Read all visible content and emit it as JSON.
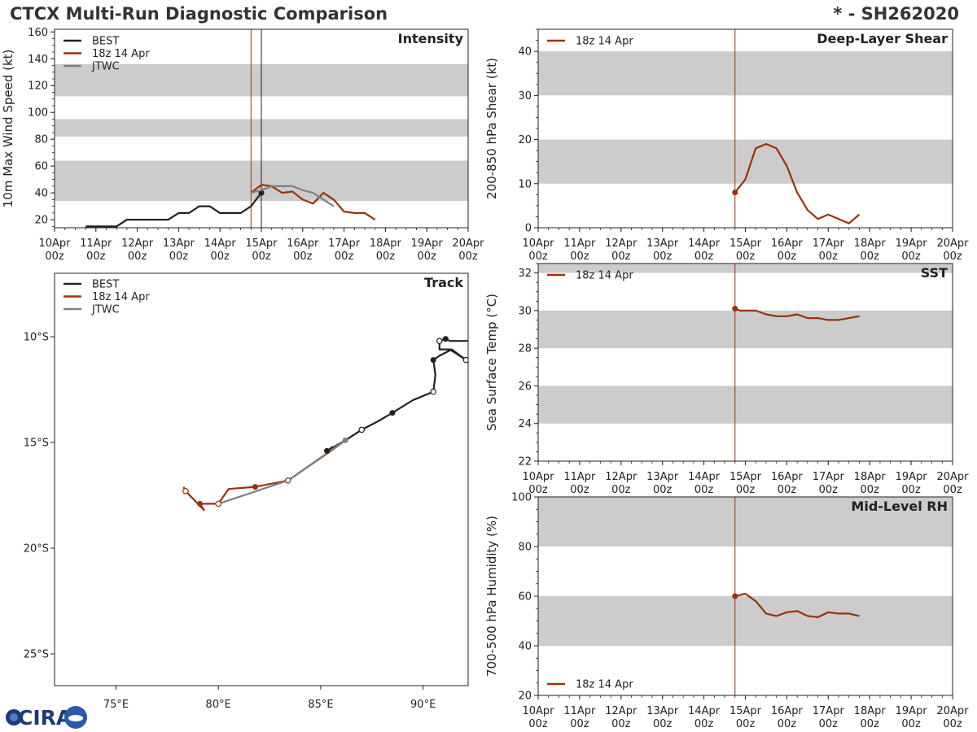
{
  "header": {
    "title": "CTCX Multi-Run Diagnostic Comparison",
    "storm_id": "* - SH262020"
  },
  "logo": {
    "text": "CIRA",
    "alt_name": "cira-logo"
  },
  "colors": {
    "best": "#222222",
    "run": "#9a3208",
    "jtwc": "#808080",
    "band": "#cccccc",
    "frame": "#222222"
  },
  "time_axis": {
    "start_hour": 0,
    "end_hour": 240,
    "step_hour": 24,
    "labels": [
      "10Apr\n00z",
      "11Apr\n00z",
      "12Apr\n00z",
      "13Apr\n00z",
      "14Apr\n00z",
      "15Apr\n00z",
      "16Apr\n00z",
      "17Apr\n00z",
      "18Apr\n00z",
      "19Apr\n00z",
      "20Apr\n00z"
    ],
    "init_hour": 114,
    "current_hour": 120
  },
  "chart_data": [
    {
      "id": "intensity",
      "type": "line",
      "title": "Intensity",
      "ylabel": "10m Max Wind Speed (kt)",
      "ylim": [
        14,
        162
      ],
      "yticks": [
        20,
        40,
        60,
        80,
        100,
        120,
        140,
        160
      ],
      "bands": [
        [
          34,
          64
        ],
        [
          82,
          95
        ],
        [
          112,
          136
        ]
      ],
      "legend": [
        "BEST",
        "18z 14 Apr",
        "JTWC"
      ],
      "series": [
        {
          "name": "BEST",
          "key": "best",
          "x": [
            18,
            30,
            36,
            42,
            48,
            54,
            60,
            66,
            72,
            78,
            84,
            90,
            96,
            102,
            108,
            114,
            120
          ],
          "y": [
            15,
            15,
            15,
            20,
            20,
            20,
            20,
            20,
            25,
            25,
            30,
            30,
            25,
            25,
            25,
            30,
            40
          ],
          "marker_last": true
        },
        {
          "name": "18z 14 Apr",
          "key": "run",
          "x": [
            114,
            120,
            126,
            132,
            138,
            144,
            150,
            156,
            162,
            168,
            174,
            180,
            186
          ],
          "y": [
            40,
            46,
            45,
            40,
            41,
            35,
            32,
            40,
            35,
            26,
            25,
            25,
            20
          ]
        },
        {
          "name": "JTWC",
          "key": "jtwc",
          "x": [
            114,
            120,
            126,
            132,
            138,
            144,
            150,
            156,
            162
          ],
          "y": [
            40,
            42,
            45,
            45,
            45,
            42,
            40,
            35,
            30
          ]
        }
      ]
    },
    {
      "id": "shear",
      "type": "line",
      "title": "Deep-Layer Shear",
      "ylabel": "200-850 hPa Shear (kt)",
      "ylim": [
        0,
        45
      ],
      "yticks": [
        0,
        10,
        20,
        30,
        40
      ],
      "bands": [
        [
          10,
          20
        ],
        [
          30,
          40
        ]
      ],
      "legend": [
        "18z 14 Apr"
      ],
      "series": [
        {
          "name": "18z 14 Apr",
          "key": "run",
          "x": [
            114,
            120,
            126,
            132,
            138,
            144,
            150,
            156,
            162,
            168,
            174,
            180,
            186
          ],
          "y": [
            8,
            11,
            18,
            19,
            18,
            14,
            8,
            4,
            2,
            3,
            2,
            1,
            3
          ],
          "marker_first": true
        }
      ]
    },
    {
      "id": "sst",
      "type": "line",
      "title": "SST",
      "ylabel": "Sea Surface Temp (°C)",
      "ylim": [
        22,
        32.5
      ],
      "yticks": [
        22,
        24,
        26,
        28,
        30,
        32
      ],
      "bands": [
        [
          24,
          26
        ],
        [
          28,
          30
        ],
        [
          32,
          32.5
        ]
      ],
      "legend": [
        "18z 14 Apr"
      ],
      "series": [
        {
          "name": "18z 14 Apr",
          "key": "run",
          "x": [
            114,
            117,
            120,
            126,
            132,
            138,
            144,
            150,
            156,
            162,
            168,
            174,
            180,
            186
          ],
          "y": [
            30.1,
            30.0,
            30.0,
            30.0,
            29.8,
            29.7,
            29.7,
            29.8,
            29.6,
            29.6,
            29.5,
            29.5,
            29.6,
            29.7
          ],
          "marker_first": true
        }
      ]
    },
    {
      "id": "rh",
      "type": "line",
      "title": "Mid-Level RH",
      "ylabel": "700-500 hPa Humidity (%)",
      "ylim": [
        20,
        100
      ],
      "yticks": [
        20,
        40,
        60,
        80,
        100
      ],
      "bands": [
        [
          40,
          60
        ],
        [
          80,
          100
        ]
      ],
      "legend": [
        "18z 14 Apr"
      ],
      "series": [
        {
          "name": "18z 14 Apr",
          "key": "run",
          "x": [
            114,
            120,
            126,
            132,
            138,
            144,
            150,
            156,
            162,
            168,
            174,
            180,
            186
          ],
          "y": [
            60,
            61,
            58,
            53,
            52,
            53.5,
            54,
            52,
            51.5,
            53.5,
            53,
            53,
            52
          ],
          "marker_first": true
        }
      ]
    },
    {
      "id": "track",
      "type": "map",
      "title": "Track",
      "xlim": [
        72,
        92.2
      ],
      "ylim": [
        -26.5,
        -7
      ],
      "xticks": [
        75,
        80,
        85,
        90
      ],
      "xtick_labels": [
        "75°E",
        "80°E",
        "85°E",
        "90°E"
      ],
      "yticks": [
        -10,
        -15,
        -20,
        -25
      ],
      "ytick_labels": [
        "10°S",
        "15°S",
        "20°S",
        "25°S"
      ],
      "legend": [
        "BEST",
        "18z 14 Apr",
        "JTWC"
      ],
      "series": [
        {
          "name": "BEST",
          "key": "best",
          "lon": [
            92.2,
            91.3,
            91.1,
            90.8,
            90.8,
            91.3,
            92.1,
            91.4,
            90.8,
            90.5,
            90.6,
            90.5,
            89.5,
            88.5,
            87.8,
            87.0,
            86.2,
            85.3,
            85.6
          ],
          "lat": [
            -10.2,
            -10.2,
            -10.1,
            -10.2,
            -10.6,
            -10.6,
            -11.1,
            -10.6,
            -10.9,
            -11.1,
            -11.8,
            -12.6,
            -13.0,
            -13.6,
            -14.0,
            -14.4,
            -14.9,
            -15.4,
            -15.2
          ],
          "filled": [
            false,
            false,
            true,
            false,
            false,
            false,
            false,
            false,
            false,
            true,
            false,
            false,
            false,
            true,
            false,
            false,
            false,
            true,
            false
          ],
          "open": [
            false,
            false,
            false,
            true,
            false,
            false,
            true,
            false,
            false,
            false,
            false,
            true,
            false,
            false,
            false,
            true,
            false,
            false,
            false
          ]
        },
        {
          "name": "18z 14 Apr",
          "key": "run",
          "lon": [
            86.2,
            85.5,
            83.4,
            81.8,
            80.5,
            80.0,
            79.1,
            79.3,
            78.4,
            78.3
          ],
          "lat": [
            -14.9,
            -15.4,
            -16.8,
            -17.1,
            -17.2,
            -17.9,
            -17.9,
            -18.2,
            -17.3,
            -17.1
          ],
          "filled": [
            false,
            false,
            false,
            true,
            false,
            false,
            true,
            false,
            false,
            false
          ],
          "open": [
            false,
            false,
            true,
            false,
            false,
            true,
            false,
            false,
            true,
            false
          ]
        },
        {
          "name": "JTWC",
          "key": "jtwc",
          "lon": [
            86.2,
            83.4,
            80.0
          ],
          "lat": [
            -14.9,
            -16.8,
            -17.9
          ],
          "filled": [
            true,
            false,
            false
          ],
          "open": [
            false,
            false,
            false
          ]
        }
      ]
    }
  ]
}
